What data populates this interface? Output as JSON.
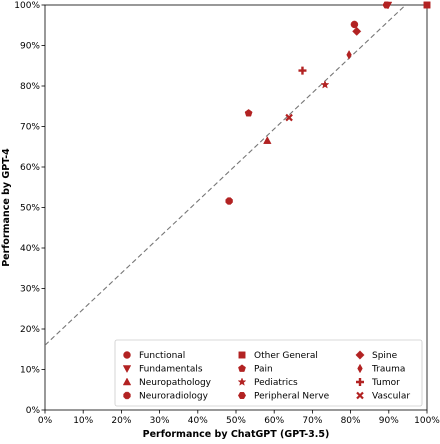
{
  "chart_data": {
    "type": "scatter",
    "xlabel": "Performance by ChatGPT (GPT-3.5)",
    "ylabel": "Performance by GPT-4",
    "xlim": [
      0,
      100
    ],
    "ylim": [
      0,
      100
    ],
    "x_ticks": [
      "0%",
      "10%",
      "20%",
      "30%",
      "40%",
      "50%",
      "60%",
      "70%",
      "80%",
      "90%",
      "100%"
    ],
    "y_ticks": [
      "0%",
      "10%",
      "20%",
      "30%",
      "40%",
      "50%",
      "60%",
      "70%",
      "80%",
      "90%",
      "100%"
    ],
    "grid": false,
    "legend_position": "lower-right",
    "marker_color": "#b22222",
    "trend_line": {
      "style": "dashed",
      "color": "#777777",
      "points": [
        [
          0,
          16
        ],
        [
          100,
          105
        ]
      ]
    },
    "series": [
      {
        "name": "Functional",
        "marker": "circle",
        "x": 81,
        "y": 95.2
      },
      {
        "name": "Fundamentals",
        "marker": "triangle-down",
        "x": 89.8,
        "y": 100
      },
      {
        "name": "Neuropathology",
        "marker": "triangle-up",
        "x": 58.2,
        "y": 66.5
      },
      {
        "name": "Neuroradiology",
        "marker": "octagon",
        "x": 48.2,
        "y": 51.6
      },
      {
        "name": "Other General",
        "marker": "square",
        "x": 100,
        "y": 100
      },
      {
        "name": "Pain",
        "marker": "pentagon",
        "x": 53.3,
        "y": 73.3
      },
      {
        "name": "Pediatrics",
        "marker": "star",
        "x": 73.3,
        "y": 80.3
      },
      {
        "name": "Peripheral Nerve",
        "marker": "hexagon",
        "x": 89.4,
        "y": 100
      },
      {
        "name": "Spine",
        "marker": "diamond",
        "x": 81.6,
        "y": 93.5
      },
      {
        "name": "Trauma",
        "marker": "thin-diamond",
        "x": 79.6,
        "y": 87.7
      },
      {
        "name": "Tumor",
        "marker": "plus",
        "x": 67.4,
        "y": 83.8
      },
      {
        "name": "Vascular",
        "marker": "x",
        "x": 63.9,
        "y": 72.2
      }
    ],
    "legend_order": [
      "Functional",
      "Other General",
      "Spine",
      "Fundamentals",
      "Pain",
      "Trauma",
      "Neuropathology",
      "Pediatrics",
      "Tumor",
      "Neuroradiology",
      "Peripheral Nerve",
      "Vascular"
    ]
  }
}
